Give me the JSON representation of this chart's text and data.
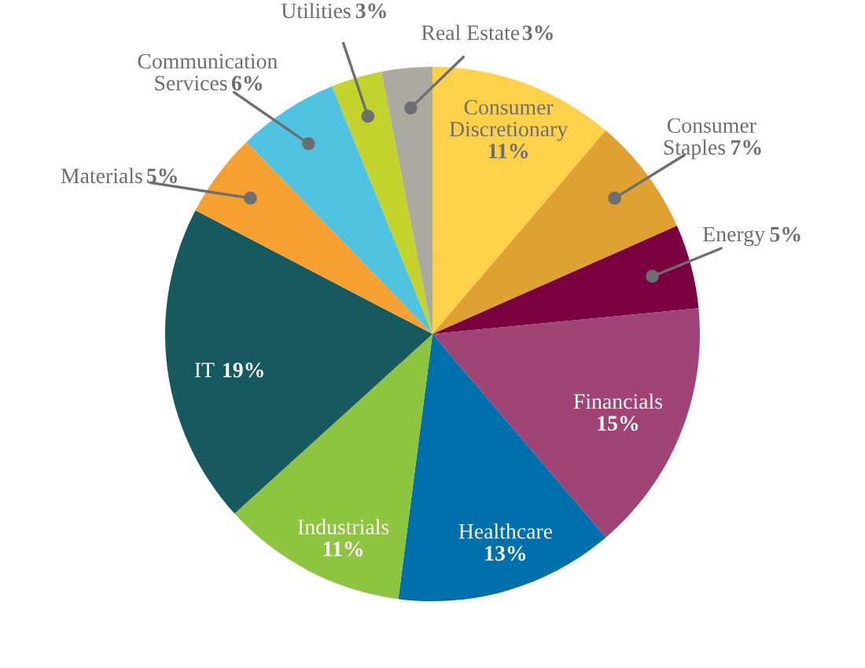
{
  "chart_data": {
    "type": "pie",
    "categories": [
      "Consumer Discretionary",
      "Consumer Staples",
      "Energy",
      "Financials",
      "Healthcare",
      "Industrials",
      "IT",
      "Materials",
      "Communication Services",
      "Utilities",
      "Real Estate"
    ],
    "values": [
      11,
      7,
      5,
      15,
      13,
      11,
      19,
      5,
      6,
      3,
      3
    ],
    "colors": [
      "#fdd14a",
      "#dea132",
      "#7a0040",
      "#a04375",
      "#0070ad",
      "#8dc540",
      "#165a60",
      "#f5a030",
      "#4fc3df",
      "#c3d32b",
      "#abaaa0"
    ],
    "value_labels": [
      "11%",
      "7%",
      "5%",
      "15%",
      "13%",
      "11%",
      "19%",
      "5%",
      "6%",
      "3%",
      "3%"
    ]
  }
}
